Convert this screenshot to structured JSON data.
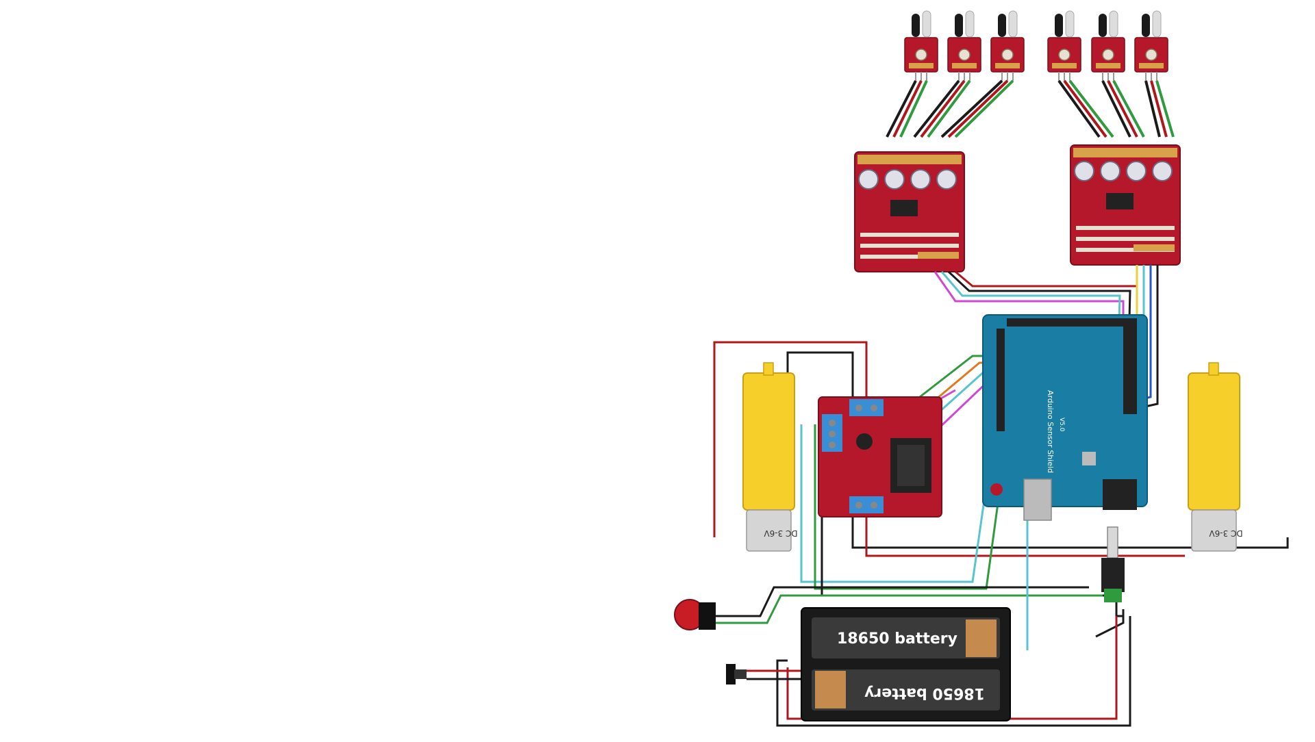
{
  "battery": {
    "top_label": "18650 battery",
    "bottom_label": "18650 battery"
  },
  "motors": {
    "left_label": "DC 3-6V",
    "right_label": "DC 3-6V"
  },
  "shield": {
    "label": "Arduino Sensor Shield",
    "version": "V5.0"
  },
  "colors": {
    "pcb_red": "#b5182a",
    "arduino_blue": "#1a7ea4",
    "motor_yellow": "#f7cf2b",
    "wire_red": "#b0171c",
    "wire_black": "#1a1a1a",
    "wire_green": "#2f9a3e",
    "wire_cyan": "#58c4cf",
    "wire_magenta": "#d048d0",
    "wire_yellow": "#e6d23a",
    "wire_orange": "#e07a1e",
    "wire_blue": "#2a55c8"
  }
}
